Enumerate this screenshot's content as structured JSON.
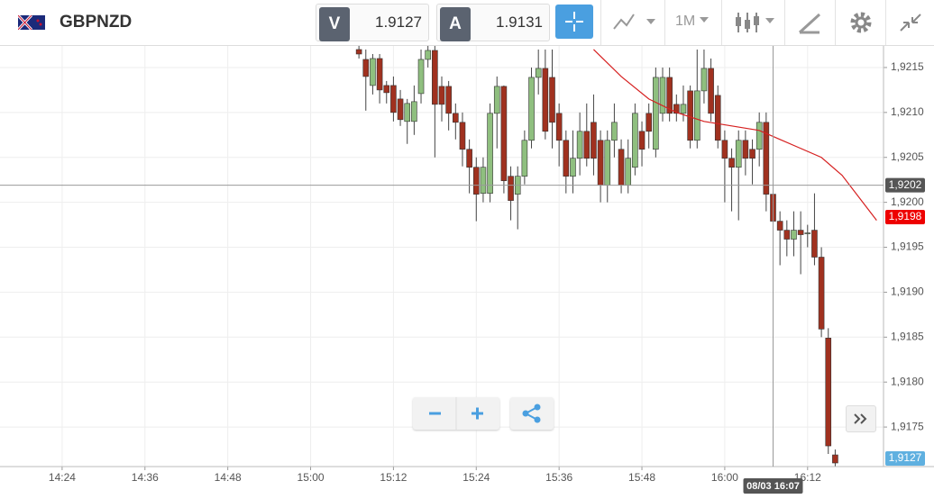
{
  "toolbar": {
    "symbol": "GBPNZD",
    "bid_label": "V",
    "bid": "1.9127",
    "ask_label": "A",
    "ask": "1.9131",
    "timeframe": "1M"
  },
  "chart_data": {
    "type": "candlestick",
    "x": [
      "15:07",
      "15:08",
      "15:09",
      "15:10",
      "15:11",
      "15:12",
      "15:13",
      "15:14",
      "15:15",
      "15:16",
      "15:17",
      "15:18",
      "15:19",
      "15:20",
      "15:21",
      "15:22",
      "15:23",
      "15:24",
      "15:25",
      "15:26",
      "15:27",
      "15:28",
      "15:29",
      "15:30",
      "15:31",
      "15:32",
      "15:33",
      "15:34",
      "15:35",
      "15:36",
      "15:37",
      "15:38",
      "15:39",
      "15:40",
      "15:41",
      "15:42",
      "15:43",
      "15:44",
      "15:45",
      "15:46",
      "15:47",
      "15:48",
      "15:49",
      "15:50",
      "15:51",
      "15:52",
      "15:53",
      "15:54",
      "15:55",
      "15:56",
      "15:57",
      "15:58",
      "15:59",
      "16:00",
      "16:01",
      "16:02",
      "16:03",
      "16:04",
      "16:05",
      "16:06",
      "16:07",
      "16:08",
      "16:09",
      "16:10",
      "16:11",
      "16:12",
      "16:13",
      "16:14",
      "16:15",
      "16:16"
    ],
    "open": [
      1.9217,
      1.92159,
      1.9213,
      1.9216,
      1.9213,
      1.9213,
      1.92115,
      1.9209,
      1.9209,
      1.92121,
      1.92159,
      1.92169,
      1.92129,
      1.92129,
      1.92099,
      1.92089,
      1.92059,
      1.92039,
      1.9201,
      1.9201,
      1.92099,
      1.92129,
      1.92029,
      1.92009,
      1.92029,
      1.92069,
      1.92139,
      1.92149,
      1.92139,
      1.92099,
      1.92069,
      1.92029,
      1.92049,
      1.92079,
      1.92089,
      1.92069,
      1.92019,
      1.92069,
      1.92059,
      1.92019,
      1.92039,
      1.92079,
      1.92099,
      1.92059,
      1.92099,
      1.92139,
      1.92109,
      1.92099,
      1.92124,
      1.92069,
      1.92124,
      1.92149,
      1.92119,
      1.92069,
      1.92049,
      1.92039,
      1.92069,
      1.92059,
      1.92059,
      1.92089,
      1.92009,
      1.91979,
      1.91969,
      1.91959,
      1.91969,
      1.91965,
      1.91969,
      1.91939,
      1.91849,
      1.91719
    ],
    "high": [
      1.92174,
      1.9217,
      1.92165,
      1.92165,
      1.92135,
      1.9214,
      1.92125,
      1.92115,
      1.9213,
      1.9217,
      1.92174,
      1.92174,
      1.9214,
      1.92135,
      1.9211,
      1.921,
      1.9207,
      1.9205,
      1.9205,
      1.9211,
      1.9214,
      1.9213,
      1.9204,
      1.9204,
      1.9208,
      1.9215,
      1.9217,
      1.9217,
      1.9217,
      1.9211,
      1.9208,
      1.9208,
      1.921,
      1.9211,
      1.9212,
      1.9208,
      1.9208,
      1.9211,
      1.9207,
      1.9207,
      1.9211,
      1.9209,
      1.9211,
      1.9215,
      1.9215,
      1.9215,
      1.9212,
      1.9213,
      1.9213,
      1.9217,
      1.9217,
      1.9216,
      1.9213,
      1.9208,
      1.9206,
      1.9208,
      1.9208,
      1.9207,
      1.921,
      1.921,
      1.9202,
      1.9199,
      1.9198,
      1.9199,
      1.9199,
      1.91975,
      1.9201,
      1.9195,
      1.9186,
      1.91725
    ],
    "low": [
      1.9216,
      1.92102,
      1.9212,
      1.9211,
      1.9211,
      1.9209,
      1.92085,
      1.92065,
      1.92075,
      1.9211,
      1.9215,
      1.9205,
      1.9209,
      1.9208,
      1.9207,
      1.9204,
      1.9201,
      1.91979,
      1.92,
      1.92,
      1.9206,
      1.9201,
      1.9198,
      1.9197,
      1.9202,
      1.9206,
      1.9212,
      1.9207,
      1.9206,
      1.9204,
      1.9201,
      1.9201,
      1.9203,
      1.9204,
      1.9203,
      1.92,
      1.92,
      1.9205,
      1.9201,
      1.9201,
      1.9203,
      1.9204,
      1.9206,
      1.9205,
      1.9209,
      1.9209,
      1.9209,
      1.9209,
      1.9206,
      1.9206,
      1.9211,
      1.9209,
      1.9206,
      1.92,
      1.9199,
      1.9198,
      1.9203,
      1.9202,
      1.9204,
      1.9199,
      1.9197,
      1.9193,
      1.9194,
      1.9194,
      1.9192,
      1.9195,
      1.9193,
      1.9185,
      1.9172,
      1.91706
    ],
    "close": [
      1.92165,
      1.9214,
      1.9216,
      1.92125,
      1.92122,
      1.921,
      1.92092,
      1.9211,
      1.92112,
      1.92159,
      1.92169,
      1.92109,
      1.92109,
      1.92099,
      1.92089,
      1.92059,
      1.92039,
      1.92009,
      1.92039,
      1.92099,
      1.92129,
      1.92024,
      1.92002,
      1.92029,
      1.92069,
      1.92139,
      1.92149,
      1.92079,
      1.92089,
      1.92069,
      1.92029,
      1.92049,
      1.92079,
      1.92049,
      1.92049,
      1.92019,
      1.92069,
      1.92089,
      1.92019,
      1.92049,
      1.92099,
      1.92059,
      1.92079,
      1.92139,
      1.92139,
      1.92099,
      1.92099,
      1.92109,
      1.92069,
      1.92124,
      1.92149,
      1.92099,
      1.92069,
      1.92049,
      1.92039,
      1.92069,
      1.92049,
      1.92049,
      1.92089,
      1.92009,
      1.91979,
      1.91969,
      1.91959,
      1.91969,
      1.91964,
      1.91966,
      1.91939,
      1.91859,
      1.91729,
      1.9171
    ],
    "up_color": "#8fbf7f",
    "down_color": "#a0311f",
    "ma": {
      "color": "#d62020",
      "x": [
        "15:41",
        "15:45",
        "15:49",
        "15:53",
        "15:57",
        "16:01",
        "16:05",
        "16:08",
        "16:11",
        "16:14",
        "16:17",
        "16:20",
        "16:22"
      ],
      "values": [
        1.9217,
        1.9214,
        1.92115,
        1.921,
        1.9209,
        1.92085,
        1.9208,
        1.9207,
        1.9206,
        1.9205,
        1.9203,
        1.92,
        1.9198
      ]
    },
    "xlim": [
      "14:15",
      "16:23"
    ],
    "xticks": [
      "14:24",
      "14:36",
      "14:48",
      "15:00",
      "15:12",
      "15:24",
      "15:36",
      "15:48",
      "16:00",
      "16:12"
    ],
    "ylim": [
      1.91706,
      1.92174
    ],
    "yticks": [
      {
        "value": 1.9175,
        "label": "1,9175"
      },
      {
        "value": 1.918,
        "label": "1,9180"
      },
      {
        "value": 1.9185,
        "label": "1,9185"
      },
      {
        "value": 1.919,
        "label": "1,9190"
      },
      {
        "value": 1.9195,
        "label": "1,9195"
      },
      {
        "value": 1.92,
        "label": "1,9200"
      },
      {
        "value": 1.9205,
        "label": "1,9205"
      },
      {
        "value": 1.921,
        "label": "1,9210"
      },
      {
        "value": 1.9215,
        "label": "1,9215"
      }
    ],
    "grid": true,
    "crosshair": {
      "x": "16:07",
      "y": 1.92019,
      "x_label": "08/03 16:07",
      "y_label": "1,9202"
    },
    "last_price_label": "1,9198",
    "bid_tag_label": "1,9127"
  }
}
